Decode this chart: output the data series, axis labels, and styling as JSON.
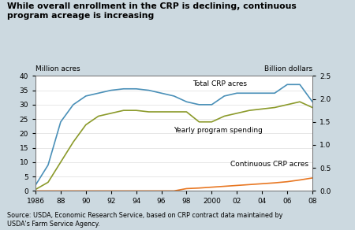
{
  "title": "While overall enrollment in the CRP is declining, continuous\nprogram acreage is increasing",
  "background_color": "#ccd9e0",
  "plot_bg_color": "#ffffff",
  "ylabel_left": "Million acres",
  "ylabel_right": "Billion dollars",
  "source": "Source: USDA, Economic Research Service, based on CRP contract data maintained by\nUSDA's Farm Service Agency.",
  "ylim_left": [
    0,
    40
  ],
  "ylim_right": [
    0,
    2.5
  ],
  "yticks_left": [
    0,
    5,
    10,
    15,
    20,
    25,
    30,
    35,
    40
  ],
  "yticks_right": [
    0,
    0.5,
    1.0,
    1.5,
    2.0,
    2.5
  ],
  "years": [
    1986,
    1987,
    1988,
    1989,
    1990,
    1991,
    1992,
    1993,
    1994,
    1995,
    1996,
    1997,
    1998,
    1999,
    2000,
    2001,
    2002,
    2003,
    2004,
    2005,
    2006,
    2007,
    2008
  ],
  "total_crp": [
    2,
    9,
    24,
    30,
    33,
    34,
    35,
    35.5,
    35.5,
    35,
    34,
    33,
    31,
    30,
    30,
    33,
    34,
    34,
    34,
    34,
    37,
    37,
    31
  ],
  "yearly_spending": [
    0.5,
    3,
    10,
    17,
    23,
    26,
    27,
    28,
    28,
    27.5,
    27.5,
    27.5,
    27.5,
    24,
    24,
    26,
    27,
    28,
    28.5,
    29,
    30,
    31,
    29
  ],
  "continuous_crp": [
    0,
    0,
    0,
    0,
    0,
    0,
    0,
    0,
    0,
    0,
    0,
    0,
    0.8,
    1.0,
    1.3,
    1.6,
    1.9,
    2.2,
    2.5,
    2.8,
    3.2,
    3.8,
    4.5
  ],
  "total_crp_color": "#4a90b8",
  "yearly_spending_color": "#8b9a2a",
  "continuous_crp_color": "#e87722",
  "xtick_labels": [
    "1986",
    "88",
    "90",
    "92",
    "94",
    "96",
    "98",
    "2000",
    "02",
    "04",
    "06",
    "08"
  ],
  "xtick_positions": [
    1986,
    1988,
    1990,
    1992,
    1994,
    1996,
    1998,
    2000,
    2002,
    2004,
    2006,
    2008
  ],
  "label_total_crp": "Total CRP acres",
  "label_spending": "Yearly program spending",
  "label_continuous": "Continuous CRP acres"
}
